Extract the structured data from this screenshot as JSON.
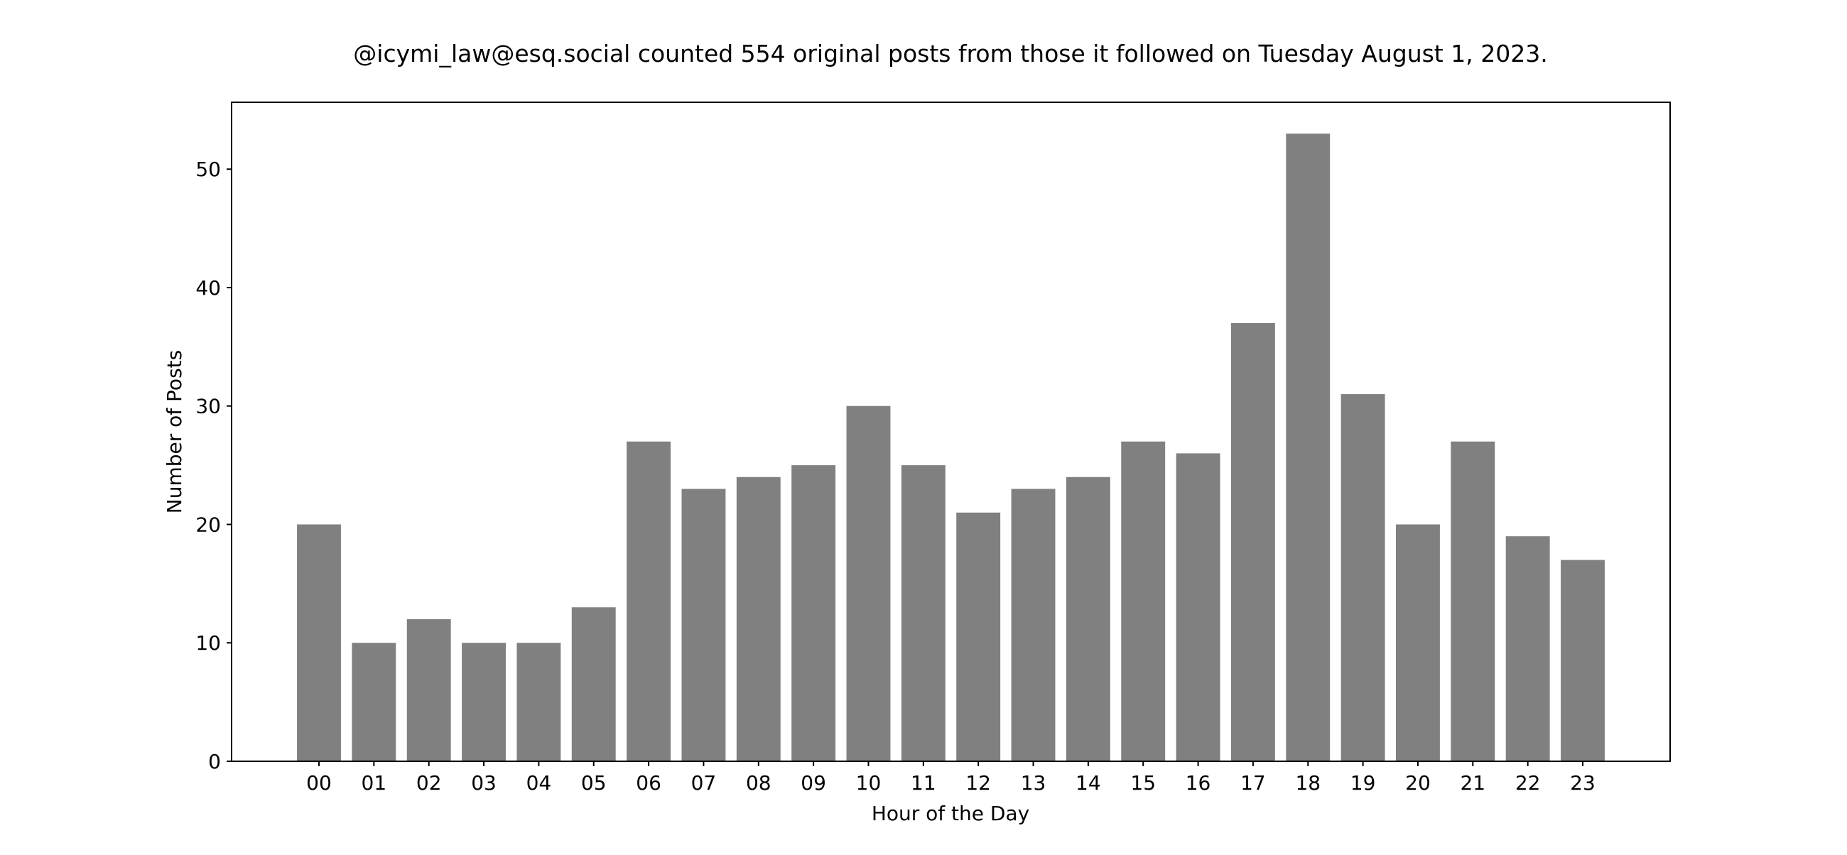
{
  "chart_data": {
    "type": "bar",
    "title": "@icymi_law@esq.social counted 554 original posts from those it followed on Tuesday August 1, 2023.",
    "xlabel": "Hour of the Day",
    "ylabel": "Number of Posts",
    "categories": [
      "00",
      "01",
      "02",
      "03",
      "04",
      "05",
      "06",
      "07",
      "08",
      "09",
      "10",
      "11",
      "12",
      "13",
      "14",
      "15",
      "16",
      "17",
      "18",
      "19",
      "20",
      "21",
      "22",
      "23"
    ],
    "values": [
      20,
      10,
      12,
      10,
      10,
      13,
      27,
      23,
      24,
      25,
      30,
      25,
      21,
      23,
      24,
      27,
      26,
      37,
      53,
      31,
      20,
      27,
      19,
      17
    ],
    "ylim": [
      0,
      55.65
    ],
    "yticks": [
      0,
      10,
      20,
      30,
      40,
      50
    ],
    "grid": false,
    "bar_color": "#808080"
  }
}
